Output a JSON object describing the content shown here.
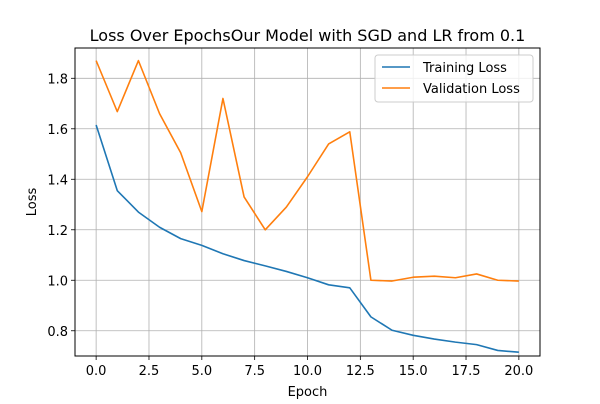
{
  "chart_data": {
    "type": "line",
    "title": "Loss Over EpochsOur Model with SGD and LR from 0.1",
    "xlabel": "Epoch",
    "ylabel": "Loss",
    "xlim": [
      -1,
      21
    ],
    "ylim": [
      0.7,
      1.92
    ],
    "x_ticks": [
      0.0,
      2.5,
      5.0,
      7.5,
      10.0,
      12.5,
      15.0,
      17.5,
      20.0
    ],
    "x_tick_labels": [
      "0.0",
      "2.5",
      "5.0",
      "7.5",
      "10.0",
      "12.5",
      "15.0",
      "17.5",
      "20.0"
    ],
    "y_ticks": [
      0.8,
      1.0,
      1.2,
      1.4,
      1.6,
      1.8
    ],
    "y_tick_labels": [
      "0.8",
      "1.0",
      "1.2",
      "1.4",
      "1.6",
      "1.8"
    ],
    "grid": true,
    "legend_position": "top-right",
    "x": [
      0,
      1,
      2,
      3,
      4,
      5,
      6,
      7,
      8,
      9,
      10,
      11,
      12,
      13,
      14,
      15,
      16,
      17,
      18,
      19,
      20
    ],
    "series": [
      {
        "name": "Training Loss",
        "color": "#1f77b4",
        "values": [
          1.615,
          1.355,
          1.27,
          1.21,
          1.165,
          1.138,
          1.105,
          1.078,
          1.057,
          1.035,
          1.01,
          0.982,
          0.97,
          0.855,
          0.802,
          0.782,
          0.767,
          0.755,
          0.745,
          0.722,
          0.715
        ]
      },
      {
        "name": "Validation Loss",
        "color": "#ff7f0e",
        "values": [
          1.87,
          1.668,
          1.87,
          1.66,
          1.505,
          1.272,
          1.72,
          1.33,
          1.2,
          1.29,
          1.41,
          1.54,
          1.588,
          1.0,
          0.997,
          1.012,
          1.016,
          1.01,
          1.025,
          1.0,
          0.997
        ]
      }
    ]
  }
}
